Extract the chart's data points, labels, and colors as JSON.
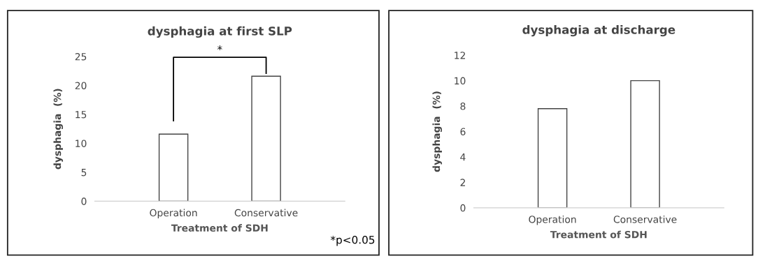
{
  "chart_data": [
    {
      "type": "bar",
      "title": "dysphagia at first SLP",
      "xlabel": "Treatment of SDH",
      "ylabel": "dysphagia  (%)",
      "categories": [
        "Operation",
        "Conservative"
      ],
      "values": [
        11.6,
        21.6
      ],
      "color": "#ffffff",
      "ylim": [
        0,
        25
      ],
      "yticks": [
        0,
        5,
        10,
        15,
        20,
        25
      ],
      "grid": false,
      "annotations": [
        "*",
        "*p<0.05"
      ]
    },
    {
      "type": "bar",
      "title": "dysphagia at discharge",
      "xlabel": "Treatment of SDH",
      "ylabel": "dysphagia  (%)",
      "categories": [
        "Operation",
        "Conservative"
      ],
      "values": [
        7.8,
        10.0
      ],
      "color": "#ffffff",
      "ylim": [
        0,
        12
      ],
      "yticks": [
        0,
        2,
        4,
        6,
        8,
        10,
        12
      ],
      "grid": false
    }
  ]
}
